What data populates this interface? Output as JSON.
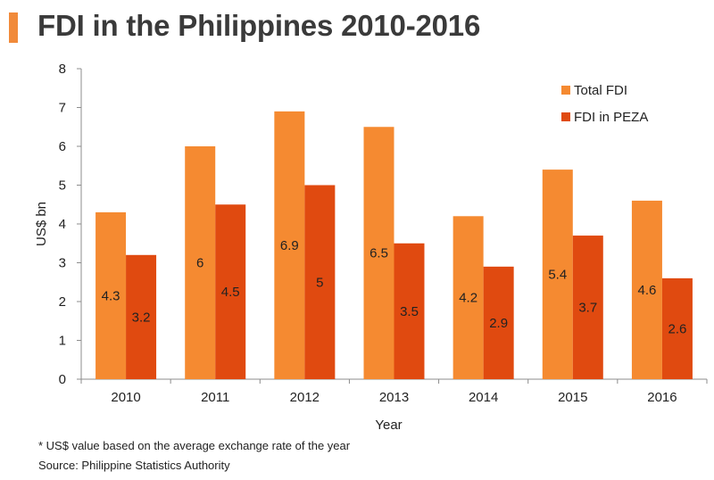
{
  "title": "FDI in the Philippines 2010-2016",
  "footnote": "* US$ value based on the average exchange rate of the year",
  "source": "Source: Philippine Statistics Authority",
  "chart_data": {
    "type": "bar",
    "categories": [
      "2010",
      "2011",
      "2012",
      "2013",
      "2014",
      "2015",
      "2016"
    ],
    "series": [
      {
        "name": "Total FDI",
        "color": "#f58a31",
        "values": [
          4.3,
          6,
          6.9,
          6.5,
          4.2,
          5.4,
          4.6
        ]
      },
      {
        "name": "FDI in PEZA",
        "color": "#e04a10",
        "values": [
          3.2,
          4.5,
          5,
          3.5,
          2.9,
          3.7,
          2.6
        ]
      }
    ],
    "xlabel": "Year",
    "ylabel": "US$ bn",
    "ylim": [
      0,
      8
    ],
    "yticks": [
      0,
      1,
      2,
      3,
      4,
      5,
      6,
      7,
      8
    ],
    "grid": false,
    "legend": "top-right"
  }
}
